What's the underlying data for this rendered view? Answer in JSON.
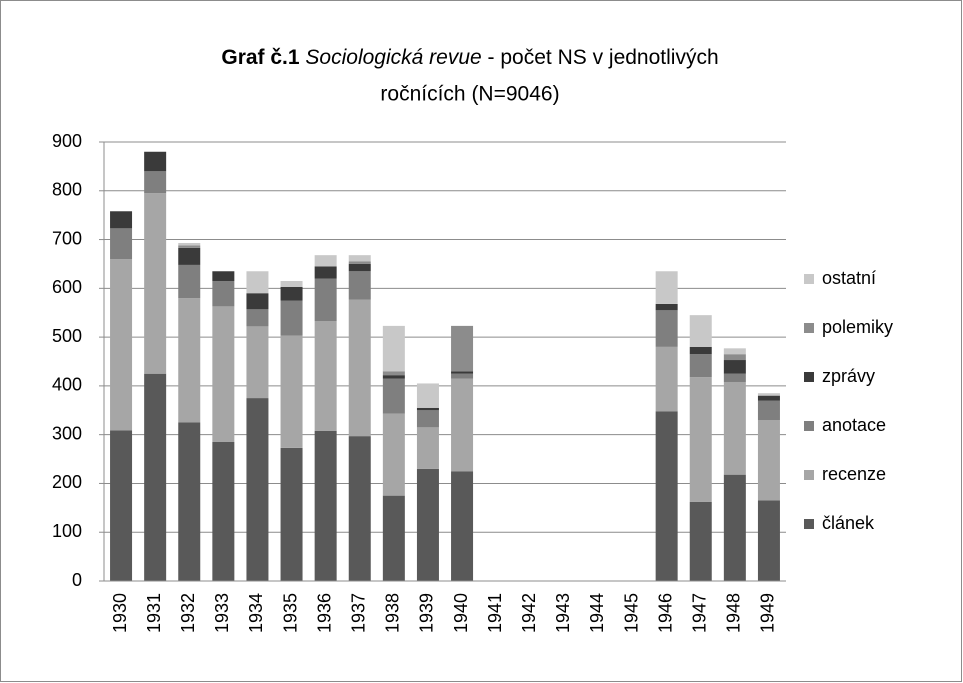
{
  "chart_data": {
    "type": "stacked_bar",
    "title_parts": [
      "Graf č.1",
      "Sociologická revue",
      "- počet NS v jednotlivých",
      "ročnících (N=9046)"
    ],
    "categories": [
      "1930",
      "1931",
      "1932",
      "1933",
      "1934",
      "1935",
      "1936",
      "1937",
      "1938",
      "1939",
      "1940",
      "1941",
      "1942",
      "1943",
      "1944",
      "1945",
      "1946",
      "1947",
      "1948",
      "1949"
    ],
    "series": [
      {
        "name": "článek",
        "color": "#595959",
        "values": [
          309,
          425,
          325,
          285,
          375,
          273,
          308,
          297,
          175,
          230,
          225,
          null,
          null,
          null,
          null,
          null,
          348,
          162,
          218,
          165
        ]
      },
      {
        "name": "recenze",
        "color": "#a6a6a6",
        "values": [
          351,
          370,
          255,
          278,
          147,
          230,
          225,
          280,
          168,
          85,
          190,
          null,
          null,
          null,
          null,
          null,
          132,
          256,
          190,
          165
        ]
      },
      {
        "name": "anotace",
        "color": "#7f7f7f",
        "values": [
          63,
          45,
          68,
          52,
          35,
          72,
          87,
          58,
          72,
          35,
          10,
          null,
          null,
          null,
          null,
          null,
          75,
          47,
          17,
          40
        ]
      },
      {
        "name": "zprávy",
        "color": "#3a3a3a",
        "values": [
          35,
          40,
          35,
          20,
          33,
          28,
          25,
          15,
          7,
          5,
          5,
          null,
          null,
          null,
          null,
          null,
          13,
          15,
          28,
          10
        ]
      },
      {
        "name": "polemiky",
        "color": "#8c8c8c",
        "values": [
          0,
          0,
          5,
          0,
          0,
          0,
          0,
          5,
          8,
          0,
          93,
          null,
          null,
          null,
          null,
          null,
          0,
          0,
          12,
          0
        ]
      },
      {
        "name": "ostatní",
        "color": "#c8c8c8",
        "values": [
          0,
          0,
          5,
          0,
          45,
          12,
          23,
          13,
          93,
          50,
          0,
          null,
          null,
          null,
          null,
          null,
          67,
          65,
          12,
          5
        ]
      }
    ],
    "ylim": [
      0,
      900
    ],
    "yticks": [
      0,
      100,
      200,
      300,
      400,
      500,
      600,
      700,
      800,
      900
    ],
    "grid": true,
    "legend": "right"
  }
}
